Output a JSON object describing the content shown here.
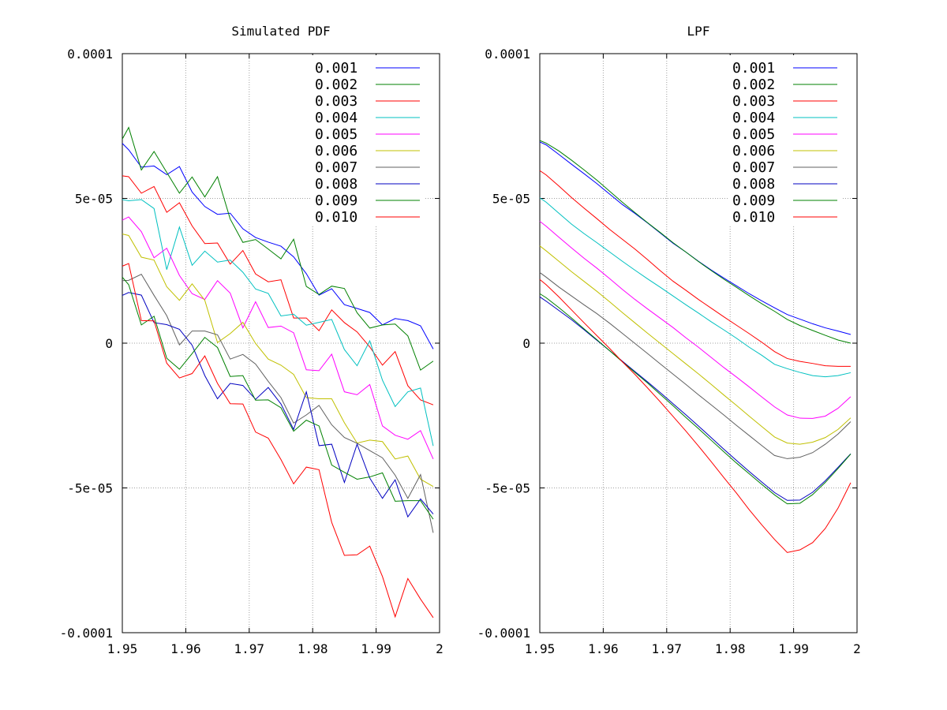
{
  "chart_data": [
    {
      "type": "line",
      "title": "Simulated PDF",
      "xlim": [
        1.95,
        2.0
      ],
      "ylim": [
        -0.0001,
        0.0001
      ],
      "x_ticks": [
        "1.95",
        "1.96",
        "1.97",
        "1.98",
        "1.99",
        "2"
      ],
      "x_tick_values": [
        1.95,
        1.96,
        1.97,
        1.98,
        1.99,
        2.0
      ],
      "y_ticks": [
        "0.0001",
        "5e-05",
        "0",
        "-5e-05",
        "-0.0001"
      ],
      "y_tick_values": [
        0.0001,
        5e-05,
        0,
        -5e-05,
        -0.0001
      ],
      "grid": true,
      "legend_position": "top-right",
      "x": [
        1.95,
        1.951,
        1.953,
        1.955,
        1.957,
        1.959,
        1.961,
        1.963,
        1.965,
        1.967,
        1.969,
        1.971,
        1.973,
        1.975,
        1.977,
        1.979,
        1.981,
        1.983,
        1.985,
        1.987,
        1.989,
        1.991,
        1.993,
        1.995,
        1.997,
        1.999
      ],
      "series": [
        {
          "name": "0.001",
          "color": "#0000ff",
          "values": [
            6.9e-05,
            6.68e-05,
            6.08e-05,
            6.12e-05,
            5.82e-05,
            6.1e-05,
            5.22e-05,
            4.72e-05,
            4.45e-05,
            4.49e-05,
            3.95e-05,
            3.65e-05,
            3.49e-05,
            3.35e-05,
            2.98e-05,
            2.4e-05,
            1.66e-05,
            1.88e-05,
            1.33e-05,
            1.2e-05,
            1.06e-05,
            6.3e-06,
            8.5e-06,
            7.8e-06,
            6e-06,
            -2e-06
          ]
        },
        {
          "name": "0.002",
          "color": "#008000",
          "values": [
            7.05e-05,
            7.45e-05,
            5.98e-05,
            6.62e-05,
            5.9e-05,
            5.18e-05,
            5.74e-05,
            5.05e-05,
            5.75e-05,
            4.29e-05,
            3.48e-05,
            3.58e-05,
            3.25e-05,
            2.91e-05,
            3.59e-05,
            1.96e-05,
            1.68e-05,
            1.97e-05,
            1.89e-05,
            1.05e-05,
            5.2e-06,
            6.3e-06,
            6.6e-06,
            2.5e-06,
            -9.3e-06,
            -6.2e-06
          ]
        },
        {
          "name": "0.003",
          "color": "#ff0000",
          "values": [
            5.78e-05,
            5.75e-05,
            5.18e-05,
            5.41e-05,
            4.52e-05,
            4.85e-05,
            4.05e-05,
            3.44e-05,
            3.46e-05,
            2.73e-05,
            3.2e-05,
            2.39e-05,
            2.12e-05,
            2.19e-05,
            8.7e-06,
            8.7e-06,
            4.3e-06,
            1.15e-05,
            7.1e-06,
            3.9e-06,
            -1.3e-06,
            -7.6e-06,
            -2.9e-06,
            -1.47e-05,
            -1.96e-05,
            -2.13e-05
          ]
        },
        {
          "name": "0.004",
          "color": "#00c0c0",
          "values": [
            4.96e-05,
            4.92e-05,
            4.96e-05,
            4.65e-05,
            2.54e-05,
            4.01e-05,
            2.69e-05,
            3.18e-05,
            2.8e-05,
            2.87e-05,
            2.45e-05,
            1.87e-05,
            1.72e-05,
            9.4e-06,
            1e-05,
            6.2e-06,
            7.2e-06,
            8.2e-06,
            -2.2e-06,
            -7.8e-06,
            8e-07,
            -1.28e-05,
            -2.19e-05,
            -1.68e-05,
            -1.55e-05,
            -3.55e-05
          ]
        },
        {
          "name": "0.005",
          "color": "#ff00ff",
          "values": [
            4.25e-05,
            4.36e-05,
            3.85e-05,
            2.95e-05,
            3.28e-05,
            2.34e-05,
            1.71e-05,
            1.51e-05,
            2.16e-05,
            1.73e-05,
            5.3e-06,
            1.43e-05,
            5.4e-06,
            5.9e-06,
            3.6e-06,
            -9.2e-06,
            -9.5e-06,
            -3.8e-06,
            -1.68e-05,
            -1.78e-05,
            -1.43e-05,
            -2.86e-05,
            -3.18e-05,
            -3.32e-05,
            -3.02e-05,
            -4e-05
          ]
        },
        {
          "name": "0.006",
          "color": "#c0c000",
          "values": [
            3.77e-05,
            3.72e-05,
            2.97e-05,
            2.87e-05,
            1.95e-05,
            1.48e-05,
            2.05e-05,
            1.48e-05,
            2e-07,
            3.3e-06,
            7.2e-06,
            -1e-07,
            -5.5e-06,
            -7.6e-06,
            -1.08e-05,
            -1.88e-05,
            -1.92e-05,
            -1.92e-05,
            -2.75e-05,
            -3.45e-05,
            -3.35e-05,
            -3.4e-05,
            -4e-05,
            -3.9e-05,
            -4.7e-05,
            -4.95e-05
          ]
        },
        {
          "name": "0.007",
          "color": "#606060",
          "values": [
            2.16e-05,
            2.17e-05,
            2.38e-05,
            1.65e-05,
            9.5e-06,
            -6e-07,
            4.2e-06,
            4.2e-06,
            2.9e-06,
            -5.5e-06,
            -3.9e-06,
            -7.2e-06,
            -1.32e-05,
            -1.88e-05,
            -2.76e-05,
            -2.48e-05,
            -2.15e-05,
            -2.82e-05,
            -3.26e-05,
            -3.46e-05,
            -3.71e-05,
            -3.96e-05,
            -4.56e-05,
            -5.36e-05,
            -4.54e-05,
            -6.55e-05
          ]
        },
        {
          "name": "0.008",
          "color": "#0000c0",
          "values": [
            1.65e-05,
            1.75e-05,
            1.66e-05,
            7.1e-06,
            6.4e-06,
            4.8e-06,
            -7e-07,
            -1.12e-05,
            -1.92e-05,
            -1.39e-05,
            -1.46e-05,
            -1.94e-05,
            -1.53e-05,
            -2.1e-05,
            -2.98e-05,
            -1.68e-05,
            -3.54e-05,
            -3.49e-05,
            -4.81e-05,
            -3.49e-05,
            -4.66e-05,
            -5.36e-05,
            -4.72e-05,
            -6e-05,
            -5.38e-05,
            -5.9e-05
          ]
        },
        {
          "name": "0.009",
          "color": "#008000",
          "values": [
            2.28e-05,
            2.02e-05,
            6.3e-06,
            9.3e-06,
            -5.2e-06,
            -9e-06,
            -3.6e-06,
            2e-06,
            -1.5e-06,
            -1.15e-05,
            -1.12e-05,
            -1.97e-05,
            -1.96e-05,
            -2.23e-05,
            -3.04e-05,
            -2.66e-05,
            -2.86e-05,
            -4.21e-05,
            -4.46e-05,
            -4.7e-05,
            -4.62e-05,
            -4.48e-05,
            -5.46e-05,
            -5.44e-05,
            -5.44e-05,
            -6.08e-05
          ]
        },
        {
          "name": "0.010",
          "color": "#ff0000",
          "values": [
            2.66e-05,
            2.75e-05,
            7.8e-06,
            7.7e-06,
            -6.9e-06,
            -1.2e-05,
            -1.05e-05,
            -4.4e-06,
            -1.39e-05,
            -2.09e-05,
            -2.1e-05,
            -3.07e-05,
            -3.28e-05,
            -4.02e-05,
            -4.86e-05,
            -4.28e-05,
            -4.37e-05,
            -6.19e-05,
            -7.33e-05,
            -7.31e-05,
            -7.01e-05,
            -8.06e-05,
            -9.45e-05,
            -8.13e-05,
            -8.84e-05,
            -9.48e-05
          ]
        }
      ]
    },
    {
      "type": "line",
      "title": "LPF",
      "xlim": [
        1.95,
        2.0
      ],
      "ylim": [
        -0.0001,
        0.0001
      ],
      "x_ticks": [
        "1.95",
        "1.96",
        "1.97",
        "1.98",
        "1.99",
        "2"
      ],
      "x_tick_values": [
        1.95,
        1.96,
        1.97,
        1.98,
        1.99,
        2.0
      ],
      "y_ticks": [
        "0.0001",
        "5e-05",
        "0",
        "-5e-05",
        "-0.0001"
      ],
      "y_tick_values": [
        0.0001,
        5e-05,
        0,
        -5e-05,
        -0.0001
      ],
      "grid": true,
      "legend_position": "top-right",
      "x": [
        1.95,
        1.951,
        1.953,
        1.955,
        1.957,
        1.959,
        1.961,
        1.963,
        1.965,
        1.967,
        1.969,
        1.971,
        1.973,
        1.975,
        1.977,
        1.979,
        1.981,
        1.983,
        1.985,
        1.987,
        1.989,
        1.991,
        1.993,
        1.995,
        1.997,
        1.999
      ],
      "series": [
        {
          "name": "0.001",
          "color": "#0000ff",
          "values": [
            6.95e-05,
            6.85e-05,
            6.52e-05,
            6.18e-05,
            5.85e-05,
            5.51e-05,
            5.15e-05,
            4.79e-05,
            4.48e-05,
            4.15e-05,
            3.8e-05,
            3.45e-05,
            3.15e-05,
            2.83e-05,
            2.53e-05,
            2.25e-05,
            1.98e-05,
            1.71e-05,
            1.46e-05,
            1.22e-05,
            9.9e-06,
            8.3e-06,
            6.7e-06,
            5.3e-06,
            4.2e-06,
            3e-06
          ]
        },
        {
          "name": "0.002",
          "color": "#008000",
          "values": [
            7e-05,
            6.91e-05,
            6.64e-05,
            6.32e-05,
            5.98e-05,
            5.63e-05,
            5.25e-05,
            4.87e-05,
            4.51e-05,
            4.16e-05,
            3.82e-05,
            3.47e-05,
            3.15e-05,
            2.82e-05,
            2.51e-05,
            2.21e-05,
            1.93e-05,
            1.64e-05,
            1.36e-05,
            1.1e-05,
            8.2e-06,
            6.1e-06,
            4.4e-06,
            2.7e-06,
            1.1e-06,
            0.0
          ]
        },
        {
          "name": "0.003",
          "color": "#ff0000",
          "values": [
            5.96e-05,
            5.81e-05,
            5.43e-05,
            5.03e-05,
            4.66e-05,
            4.3e-05,
            3.93e-05,
            3.59e-05,
            3.25e-05,
            2.88e-05,
            2.5e-05,
            2.14e-05,
            1.83e-05,
            1.51e-05,
            1.21e-05,
            9.1e-06,
            6.2e-06,
            3.3e-06,
            3e-07,
            -2.9e-06,
            -5.3e-06,
            -6.3e-06,
            -7e-06,
            -7.8e-06,
            -8e-06,
            -8e-06
          ]
        },
        {
          "name": "0.004",
          "color": "#00c0c0",
          "values": [
            5.02e-05,
            4.87e-05,
            4.49e-05,
            4.11e-05,
            3.78e-05,
            3.47e-05,
            3.15e-05,
            2.83e-05,
            2.52e-05,
            2.22e-05,
            1.93e-05,
            1.63e-05,
            1.33e-05,
            1.04e-05,
            7.4e-06,
            4.6e-06,
            1.7e-06,
            -1.4e-06,
            -4.2e-06,
            -7.3e-06,
            -8.8e-06,
            -1.01e-05,
            -1.12e-05,
            -1.16e-05,
            -1.12e-05,
            -1.02e-05
          ]
        },
        {
          "name": "0.005",
          "color": "#ff00ff",
          "values": [
            4.21e-05,
            4.04e-05,
            3.66e-05,
            3.29e-05,
            2.93e-05,
            2.59e-05,
            2.23e-05,
            1.86e-05,
            1.51e-05,
            1.18e-05,
            8.6e-06,
            5.4e-06,
            1.9e-06,
            -1.4e-06,
            -4.9e-06,
            -8.4e-06,
            -1.17e-05,
            -1.51e-05,
            -1.86e-05,
            -2.2e-05,
            -2.48e-05,
            -2.59e-05,
            -2.6e-05,
            -2.52e-05,
            -2.25e-05,
            -1.85e-05
          ]
        },
        {
          "name": "0.006",
          "color": "#c0c000",
          "values": [
            3.36e-05,
            3.19e-05,
            2.83e-05,
            2.47e-05,
            2.13e-05,
            1.79e-05,
            1.43e-05,
            1.06e-05,
            7e-06,
            3.4e-06,
            -1e-07,
            -3.6e-06,
            -7.1e-06,
            -1.06e-05,
            -1.42e-05,
            -1.79e-05,
            -2.15e-05,
            -2.52e-05,
            -2.88e-05,
            -3.24e-05,
            -3.45e-05,
            -3.49e-05,
            -3.42e-05,
            -3.26e-05,
            -2.98e-05,
            -2.58e-05
          ]
        },
        {
          "name": "0.007",
          "color": "#606060",
          "values": [
            2.44e-05,
            2.28e-05,
            1.94e-05,
            1.63e-05,
            1.32e-05,
            1.02e-05,
            6.9e-06,
            3.4e-06,
            -1e-07,
            -3.6e-06,
            -7.2e-06,
            -1.07e-05,
            -1.42e-05,
            -1.78e-05,
            -2.13e-05,
            -2.48e-05,
            -2.84e-05,
            -3.19e-05,
            -3.54e-05,
            -3.88e-05,
            -3.99e-05,
            -3.94e-05,
            -3.78e-05,
            -3.49e-05,
            -3.14e-05,
            -2.71e-05
          ]
        },
        {
          "name": "0.008",
          "color": "#0000c0",
          "values": [
            1.6e-05,
            1.45e-05,
            1.13e-05,
            8.1e-06,
            4.6e-06,
            1e-06,
            -2.6e-06,
            -6.2e-06,
            -9.8e-06,
            -1.34e-05,
            -1.71e-05,
            -2.09e-05,
            -2.47e-05,
            -2.86e-05,
            -3.26e-05,
            -3.66e-05,
            -4.05e-05,
            -4.43e-05,
            -4.8e-05,
            -5.16e-05,
            -5.43e-05,
            -5.42e-05,
            -5.15e-05,
            -4.75e-05,
            -4.29e-05,
            -3.82e-05
          ]
        },
        {
          "name": "0.009",
          "color": "#008000",
          "values": [
            1.71e-05,
            1.57e-05,
            1.23e-05,
            8.7e-06,
            4.9e-06,
            1.2e-06,
            -2.6e-06,
            -6.4e-06,
            -1.01e-05,
            -1.38e-05,
            -1.77e-05,
            -2.16e-05,
            -2.56e-05,
            -2.95e-05,
            -3.35e-05,
            -3.75e-05,
            -4.14e-05,
            -4.51e-05,
            -4.88e-05,
            -5.24e-05,
            -5.55e-05,
            -5.53e-05,
            -5.23e-05,
            -4.81e-05,
            -4.33e-05,
            -3.83e-05
          ]
        },
        {
          "name": "0.010",
          "color": "#ff0000",
          "values": [
            2.2e-05,
            2.02e-05,
            1.6e-05,
            1.15e-05,
            7e-06,
            2.6e-06,
            -1.8e-06,
            -6.4e-06,
            -1.08e-05,
            -1.55e-05,
            -2.03e-05,
            -2.53e-05,
            -3.03e-05,
            -3.55e-05,
            -4.09e-05,
            -4.64e-05,
            -5.18e-05,
            -5.75e-05,
            -6.28e-05,
            -6.78e-05,
            -7.23e-05,
            -7.14e-05,
            -6.89e-05,
            -6.4e-05,
            -5.7e-05,
            -4.82e-05
          ]
        }
      ]
    }
  ]
}
